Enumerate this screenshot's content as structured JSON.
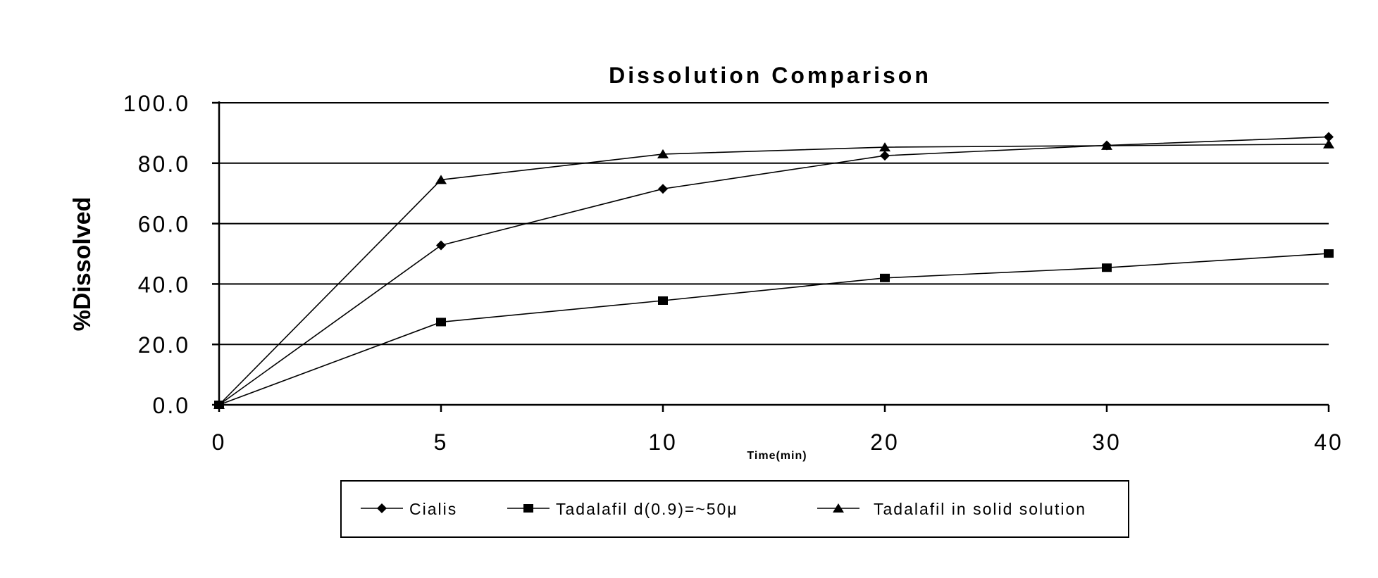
{
  "chart_data": {
    "type": "line",
    "title": "Dissolution Comparison",
    "xlabel": "Time(min)",
    "ylabel": "%Dissolved",
    "categories": [
      "0",
      "5",
      "10",
      "20",
      "30",
      "40"
    ],
    "y_ticks": [
      "0.0",
      "20.0",
      "40.0",
      "60.0",
      "80.0",
      "100.0"
    ],
    "ylim": [
      0,
      100
    ],
    "grid": "horizontal",
    "legend_position": "bottom",
    "series": [
      {
        "name": "Cialis",
        "marker": "diamond",
        "values": [
          0,
          52.8,
          71.5,
          82.5,
          85.9,
          88.7
        ]
      },
      {
        "name": "Tadalafil d(0.9)=~50μ",
        "marker": "square",
        "values": [
          0,
          27.4,
          34.5,
          42.0,
          45.4,
          50.1
        ]
      },
      {
        "name": "Tadalafil in solid solution",
        "marker": "triangle",
        "values": [
          0,
          74.5,
          83.0,
          85.3,
          85.8,
          86.3
        ]
      }
    ]
  }
}
